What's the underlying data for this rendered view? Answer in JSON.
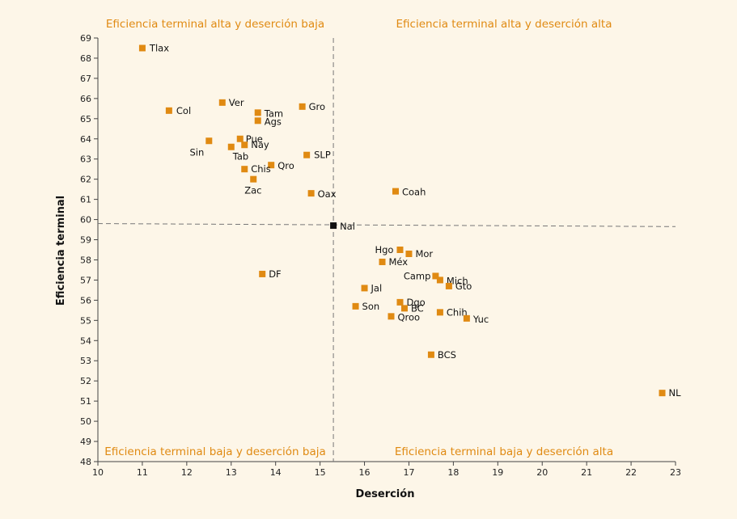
{
  "chart_data": {
    "type": "scatter",
    "title": "",
    "xlabel": "Deserción",
    "ylabel": "Eficiencia terminal",
    "xlim": [
      10,
      23
    ],
    "ylim": [
      48,
      69
    ],
    "x_ticks": [
      "10",
      "11",
      "12",
      "13",
      "14",
      "15",
      "16",
      "17",
      "18",
      "19",
      "20",
      "21",
      "22",
      "23"
    ],
    "y_ticks": [
      "48",
      "49",
      "50",
      "51",
      "52",
      "53",
      "54",
      "55",
      "56",
      "57",
      "58",
      "59",
      "60",
      "61",
      "62",
      "63",
      "64",
      "65",
      "66",
      "67",
      "68",
      "69"
    ],
    "reference_lines": {
      "x": 15.3,
      "y_start": 59.8,
      "y_end": 59.65
    },
    "quadrant_labels": {
      "top_left": "Eficiencia terminal alta y deserción baja",
      "top_right": "Eficiencia terminal alta y deserción alta",
      "bottom_left": "Eficiencia terminal baja y deserción baja",
      "bottom_right": "Eficiencia terminal baja y deserción alta"
    },
    "colors": {
      "states": "#e08a12",
      "national": "#111111",
      "quadrant_text": "#e08a12",
      "background": "#fdf6e8"
    },
    "points": [
      {
        "label": "Tlax",
        "x": 11.0,
        "y": 68.5
      },
      {
        "label": "Col",
        "x": 11.6,
        "y": 65.4
      },
      {
        "label": "Ver",
        "x": 12.8,
        "y": 65.8
      },
      {
        "label": "Tam",
        "x": 13.6,
        "y": 65.3
      },
      {
        "label": "Ags",
        "x": 13.6,
        "y": 64.9
      },
      {
        "label": "Gro",
        "x": 14.6,
        "y": 65.6
      },
      {
        "label": "Pue",
        "x": 13.2,
        "y": 64.0
      },
      {
        "label": "Nay",
        "x": 13.3,
        "y": 63.7
      },
      {
        "label": "Sin",
        "x": 12.5,
        "y": 63.9
      },
      {
        "label": "Tab",
        "x": 13.0,
        "y": 63.6
      },
      {
        "label": "SLP",
        "x": 14.7,
        "y": 63.2
      },
      {
        "label": "Qro",
        "x": 13.9,
        "y": 62.7
      },
      {
        "label": "Chis",
        "x": 13.3,
        "y": 62.5
      },
      {
        "label": "Zac",
        "x": 13.5,
        "y": 62.0
      },
      {
        "label": "Oax",
        "x": 14.8,
        "y": 61.3
      },
      {
        "label": "Coah",
        "x": 16.7,
        "y": 61.4
      },
      {
        "label": "Nal",
        "x": 15.3,
        "y": 59.7,
        "national": true
      },
      {
        "label": "DF",
        "x": 13.7,
        "y": 57.3
      },
      {
        "label": "Hgo",
        "x": 16.8,
        "y": 58.5
      },
      {
        "label": "Mor",
        "x": 17.0,
        "y": 58.3
      },
      {
        "label": "Méx",
        "x": 16.4,
        "y": 57.9
      },
      {
        "label": "Camp",
        "x": 17.6,
        "y": 57.2
      },
      {
        "label": "Mich",
        "x": 17.7,
        "y": 57.0
      },
      {
        "label": "Gto",
        "x": 17.9,
        "y": 56.7
      },
      {
        "label": "Jal",
        "x": 16.0,
        "y": 56.6
      },
      {
        "label": "Dgo",
        "x": 16.8,
        "y": 55.9
      },
      {
        "label": "Son",
        "x": 15.8,
        "y": 55.7
      },
      {
        "label": "BC",
        "x": 16.9,
        "y": 55.6
      },
      {
        "label": "Chih",
        "x": 17.7,
        "y": 55.4
      },
      {
        "label": "Qroo",
        "x": 16.6,
        "y": 55.2
      },
      {
        "label": "Yuc",
        "x": 18.3,
        "y": 55.1
      },
      {
        "label": "BCS",
        "x": 17.5,
        "y": 53.3
      },
      {
        "label": "NL",
        "x": 22.7,
        "y": 51.4
      }
    ]
  }
}
